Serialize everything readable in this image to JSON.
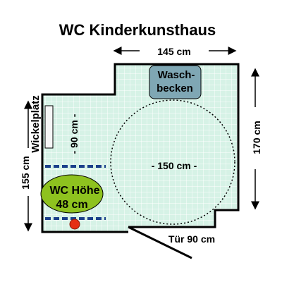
{
  "title": "WC Kinderkunsthaus",
  "dimensions": {
    "top_width": "145 cm",
    "right_height": "170 cm",
    "left_height": "155 cm",
    "turning_circle": "- 150 cm -",
    "side_space": "- 90 cm -",
    "door": "Tür 90 cm"
  },
  "fixtures": {
    "sink_line1": "Wasch-",
    "sink_line2": "becken",
    "changing_table": "Wickelplatz",
    "toilet_line1": "WC Höhe",
    "toilet_line2": "48 cm"
  },
  "colors": {
    "floor": "#d6f2e6",
    "grid": "#ffffff",
    "wall": "#000000",
    "sink": "#7fa7b4",
    "toilet": "#8ec21f",
    "grab_bar": "#1a3f8a",
    "button": "#e53015"
  }
}
